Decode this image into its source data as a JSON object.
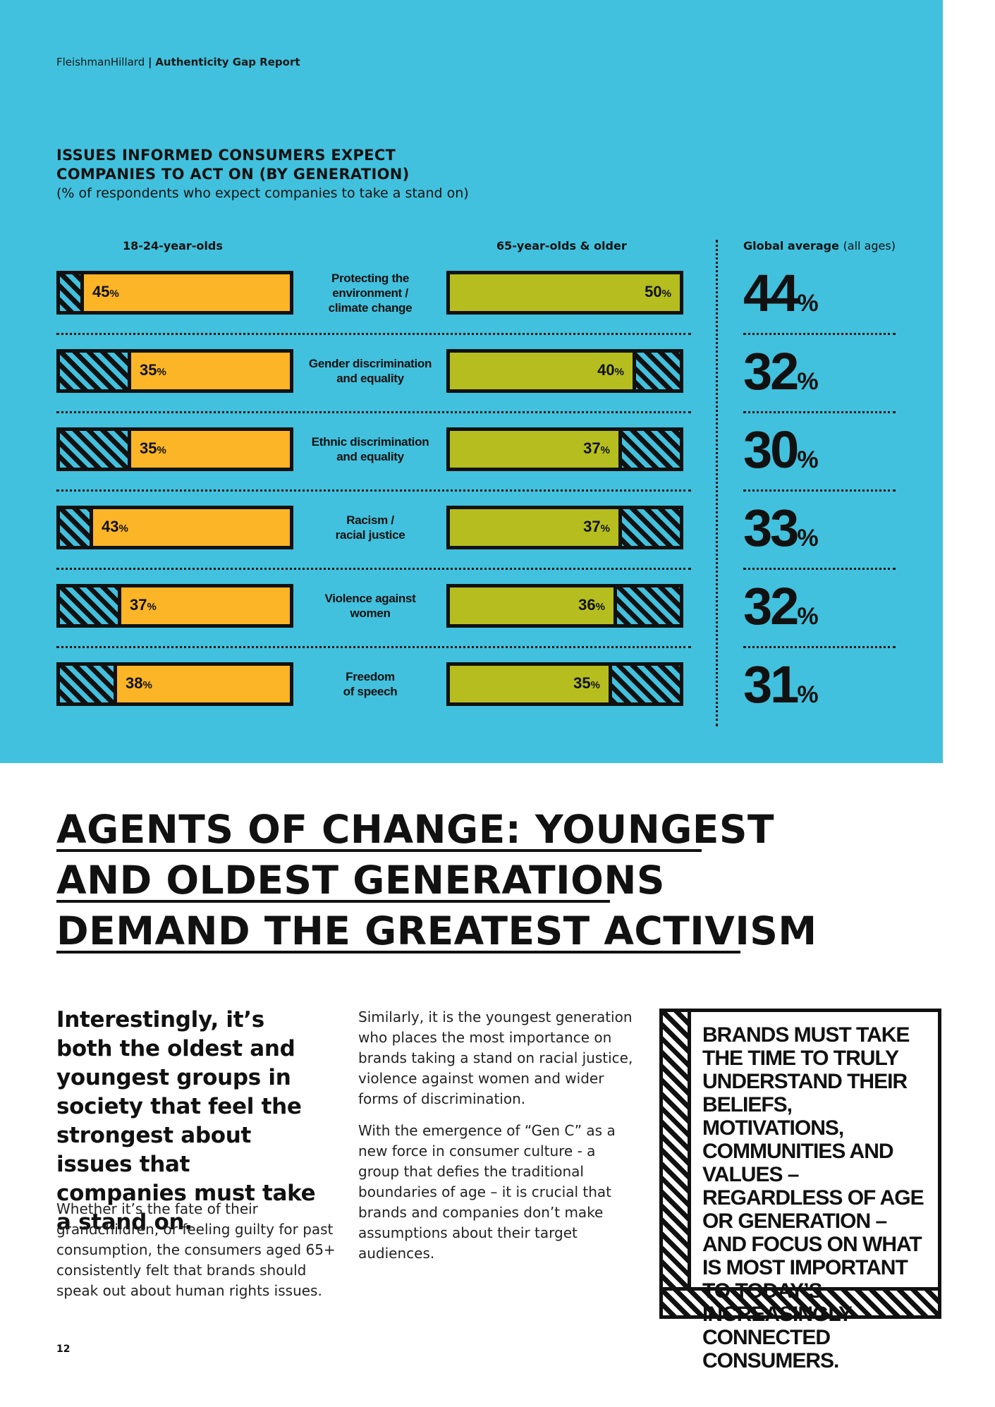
{
  "header": {
    "brand": "FleishmanHillard",
    "separator": "|",
    "report": "Authenticity Gap Report"
  },
  "chart_title": {
    "line1": "ISSUES INFORMED CONSUMERS EXPECT",
    "line2": "COMPANIES TO ACT ON (BY GENERATION)"
  },
  "chart_subtitle": "(% of respondents who expect companies to take a stand on)",
  "columns": {
    "young": "18-24-year-olds",
    "old": "65-year-olds & older",
    "global_bold": "Global average",
    "global_note": "(all ages)"
  },
  "chart_data": {
    "type": "bar",
    "categories": [
      "Protecting the environment / climate change",
      "Gender discrimination and equality",
      "Ethnic discrimination and equality",
      "Racism / racial justice",
      "Violence against women",
      "Freedom of speech"
    ],
    "series": [
      {
        "name": "18-24-year-olds",
        "values": [
          45,
          35,
          35,
          43,
          37,
          38
        ],
        "color": "#fbb526"
      },
      {
        "name": "65-year-olds & older",
        "values": [
          50,
          40,
          37,
          37,
          36,
          35
        ],
        "color": "#b5be1e"
      },
      {
        "name": "Global average (all ages)",
        "values": [
          44,
          32,
          30,
          33,
          32,
          31
        ]
      }
    ],
    "ylim": [
      0,
      50
    ]
  },
  "rows": [
    {
      "issue_l1": "Protecting the",
      "issue_l2": "environment /",
      "issue_l3": "climate change",
      "young": "45",
      "old": "50",
      "global": "44"
    },
    {
      "issue_l1": "Gender discrimination",
      "issue_l2": "and equality",
      "issue_l3": "",
      "young": "35",
      "old": "40",
      "global": "32"
    },
    {
      "issue_l1": "Ethnic discrimination",
      "issue_l2": "and equality",
      "issue_l3": "",
      "young": "35",
      "old": "37",
      "global": "30"
    },
    {
      "issue_l1": "Racism /",
      "issue_l2": "racial justice",
      "issue_l3": "",
      "young": "43",
      "old": "37",
      "global": "33"
    },
    {
      "issue_l1": "Violence against",
      "issue_l2": "women",
      "issue_l3": "",
      "young": "37",
      "old": "36",
      "global": "32"
    },
    {
      "issue_l1": "Freedom",
      "issue_l2": "of speech",
      "issue_l3": "",
      "young": "38",
      "old": "35",
      "global": "31"
    }
  ],
  "pct_symbol": "%",
  "headline": {
    "line1": "AGENTS OF CHANGE: YOUNGEST",
    "line2": "AND OLDEST GENERATIONS",
    "line3": "DEMAND THE GREATEST ACTIVISM"
  },
  "lead": "Interestingly, it’s both the oldest and youngest groups in society that feel the strongest about issues that companies must take a stand on.",
  "para_left": "Whether it’s the fate of their grandchildren, or feeling guilty for past consumption, the consumers aged 65+ consistently felt that brands should speak out about human rights issues.",
  "para_mid1": "Similarly, it is the youngest generation who places the most importance on brands taking a stand on racial justice, violence against women and wider forms of discrimination.",
  "para_mid2": "With the emergence of “Gen C” as a new force in consumer culture - a group that defies the traditional boundaries of age – it is crucial that brands and companies don’t make assumptions about their target audiences.",
  "quote": "BRANDS MUST TAKE THE TIME TO TRULY UNDERSTAND THEIR BELIEFS, MOTIVATIONS, COMMUNITIES AND VALUES – REGARDLESS OF AGE OR GENERATION – AND FOCUS ON WHAT IS MOST IMPORTANT TO TODAY’S INCREASINGLY CONNECTED CONSUMERS.",
  "page_number": "12"
}
